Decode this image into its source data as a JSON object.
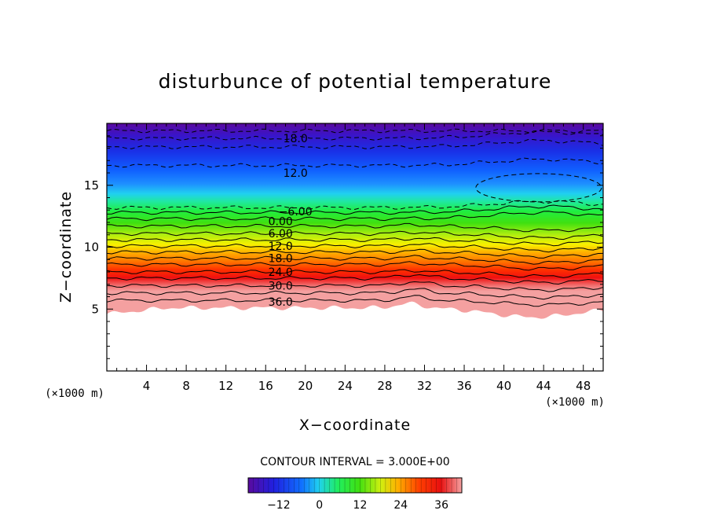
{
  "chart_data": {
    "type": "contour",
    "title": "disturbunce of potential temperature",
    "xlabel": "X−coordinate",
    "ylabel": "Z−coordinate",
    "x_unit_label": "(×1000 m)",
    "z_unit_label": "(×1000 m)",
    "xlim": [
      0,
      50
    ],
    "ylim": [
      0,
      20
    ],
    "x_ticks": [
      4,
      8,
      12,
      16,
      20,
      24,
      28,
      32,
      36,
      40,
      44,
      48
    ],
    "y_ticks": [
      5,
      10,
      15
    ],
    "contour_interval_text": "CONTOUR INTERVAL = 3.000E+00",
    "contour_labels": [
      {
        "text": "18.0",
        "x": 19,
        "z": 18.8
      },
      {
        "text": "12.0",
        "x": 19,
        "z": 16.0
      },
      {
        "text": "−6.00",
        "x": 19,
        "z": 12.9
      },
      {
        "text": "0.00",
        "x": 17.5,
        "z": 12.1
      },
      {
        "text": "6.00",
        "x": 17.5,
        "z": 11.1
      },
      {
        "text": "12.0",
        "x": 17.5,
        "z": 10.1
      },
      {
        "text": "18.0",
        "x": 17.5,
        "z": 9.1
      },
      {
        "text": "24.0",
        "x": 17.5,
        "z": 8.0
      },
      {
        "text": "30.0",
        "x": 17.5,
        "z": 6.9
      },
      {
        "text": "36.0",
        "x": 17.5,
        "z": 5.6
      }
    ],
    "colorbar": {
      "range": [
        -21,
        42
      ],
      "ticks": [
        "−12",
        "0",
        "12",
        "24",
        "36"
      ],
      "tick_values": [
        -12,
        0,
        12,
        24,
        36
      ]
    },
    "grid": false,
    "legend": "none"
  }
}
